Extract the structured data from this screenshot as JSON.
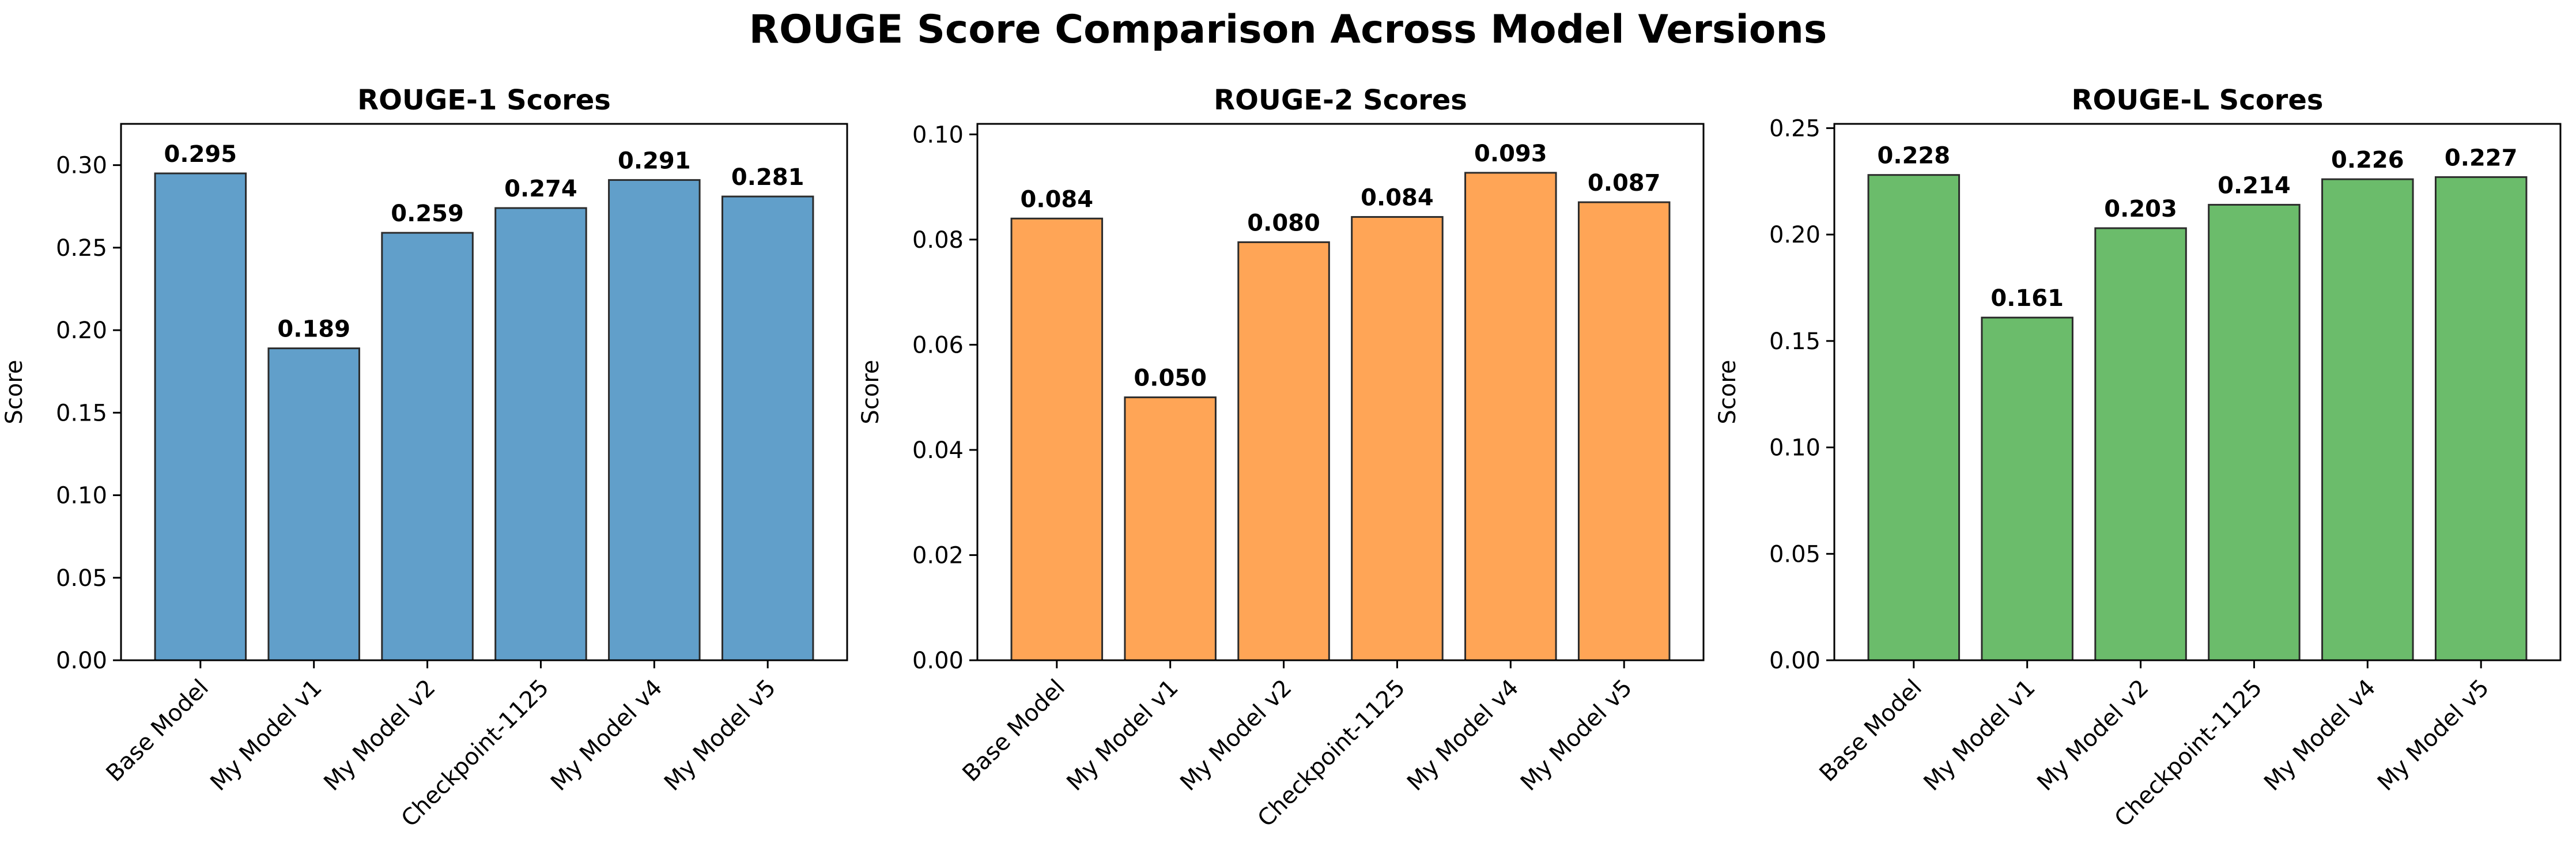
{
  "figure": {
    "title": "ROUGE Score Comparison Across Model Versions"
  },
  "chart_data": [
    {
      "type": "bar",
      "title": "ROUGE-1 Scores",
      "xlabel": "",
      "ylabel": "Score",
      "categories": [
        "Base Model",
        "My Model v1",
        "My Model v2",
        "Checkpoint-1125",
        "My Model v4",
        "My Model v5"
      ],
      "values": [
        0.295,
        0.189,
        0.259,
        0.274,
        0.291,
        0.281
      ],
      "value_labels": [
        "0.295",
        "0.189",
        "0.259",
        "0.274",
        "0.291",
        "0.281"
      ],
      "ylim": [
        0,
        0.325
      ],
      "yticks": [
        0.0,
        0.05,
        0.1,
        0.15,
        0.2,
        0.25,
        0.3
      ],
      "ytick_labels": [
        "0.00",
        "0.05",
        "0.10",
        "0.15",
        "0.20",
        "0.25",
        "0.30"
      ],
      "color": "#619fca",
      "grid": false,
      "legend": "none"
    },
    {
      "type": "bar",
      "title": "ROUGE-2 Scores",
      "xlabel": "",
      "ylabel": "Score",
      "categories": [
        "Base Model",
        "My Model v1",
        "My Model v2",
        "Checkpoint-1125",
        "My Model v4",
        "My Model v5"
      ],
      "values": [
        0.084,
        0.05,
        0.0795,
        0.0843,
        0.0927,
        0.0871
      ],
      "value_labels": [
        "0.084",
        "0.050",
        "0.080",
        "0.084",
        "0.093",
        "0.087"
      ],
      "ylim": [
        0,
        0.102
      ],
      "yticks": [
        0.0,
        0.02,
        0.04,
        0.06,
        0.08,
        0.1
      ],
      "ytick_labels": [
        "0.00",
        "0.02",
        "0.04",
        "0.06",
        "0.08",
        "0.10"
      ],
      "color": "#ffa556",
      "grid": false,
      "legend": "none"
    },
    {
      "type": "bar",
      "title": "ROUGE-L Scores",
      "xlabel": "",
      "ylabel": "Score",
      "categories": [
        "Base Model",
        "My Model v1",
        "My Model v2",
        "Checkpoint-1125",
        "My Model v4",
        "My Model v5"
      ],
      "values": [
        0.228,
        0.161,
        0.203,
        0.214,
        0.226,
        0.227
      ],
      "value_labels": [
        "0.228",
        "0.161",
        "0.203",
        "0.214",
        "0.226",
        "0.227"
      ],
      "ylim": [
        0,
        0.252
      ],
      "yticks": [
        0.0,
        0.05,
        0.1,
        0.15,
        0.2,
        0.25
      ],
      "ytick_labels": [
        "0.00",
        "0.05",
        "0.10",
        "0.15",
        "0.20",
        "0.25"
      ],
      "color": "#6bbc6b",
      "grid": false,
      "legend": "none"
    }
  ]
}
